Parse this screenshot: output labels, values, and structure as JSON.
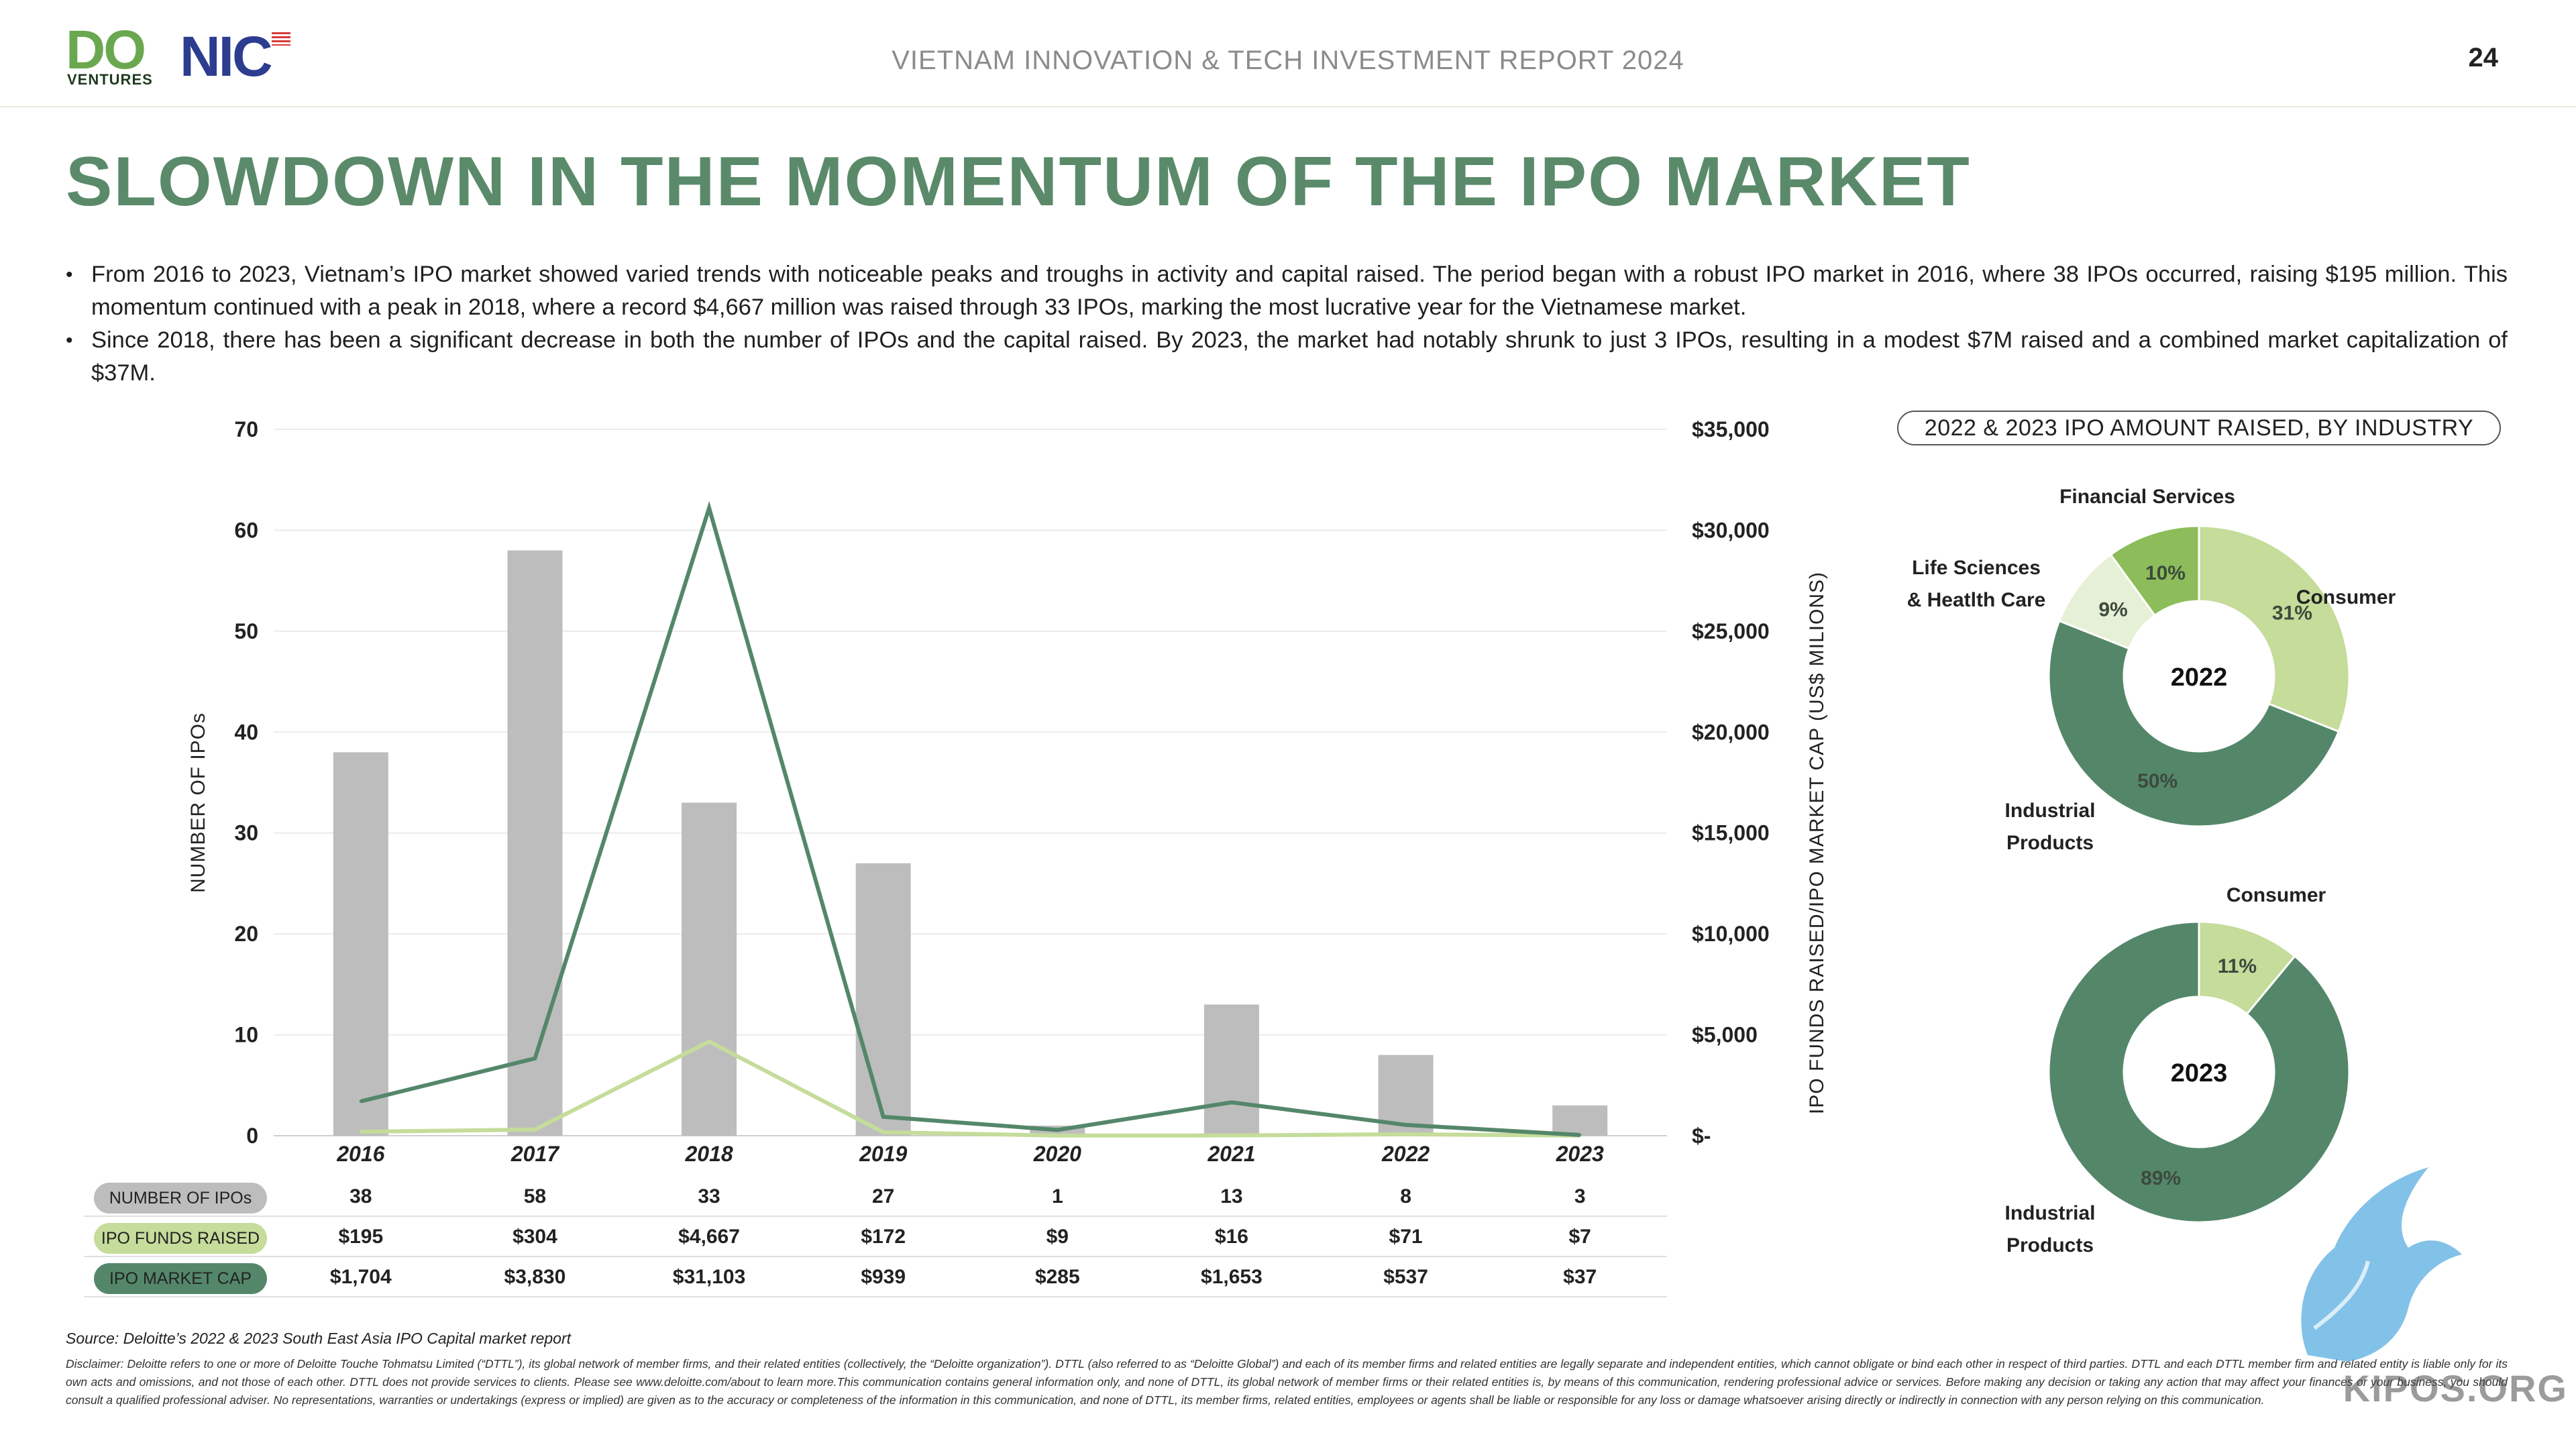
{
  "header": {
    "logo_do": "DO",
    "logo_ventures": "VENTURES",
    "logo_nic": "NIC",
    "report_title": "VIETNAM INNOVATION & TECH INVESTMENT REPORT 2024",
    "page_number": "24"
  },
  "title": "SLOWDOWN IN THE MOMENTUM OF THE IPO MARKET",
  "bullets": [
    "From 2016 to 2023, Vietnam’s IPO market showed varied trends with noticeable peaks and troughs in activity and capital raised. The period began with a robust IPO market in 2016, where 38 IPOs occurred, raising $195 million. This momentum continued with a peak in 2018, where a record $4,667 million was raised through 33 IPOs, marking the most lucrative year for the Vietnamese market.",
    "Since 2018, there has been a significant decrease in both the number of IPOs and the capital raised. By 2023, the market had notably shrunk to just 3 IPOs, resulting in a modest $7M raised and a combined market capitalization of $37M."
  ],
  "chart_data": [
    {
      "type": "bar",
      "categories": [
        "2016",
        "2017",
        "2018",
        "2019",
        "2020",
        "2021",
        "2022",
        "2023"
      ],
      "series": [
        {
          "name": "NUMBER OF IPOs",
          "type": "bar",
          "axis": "left",
          "values": [
            38,
            58,
            33,
            27,
            1,
            13,
            8,
            3
          ],
          "color": "#bdbdbd"
        },
        {
          "name": "IPO FUNDS RAISED",
          "type": "line",
          "axis": "right",
          "values": [
            195,
            304,
            4667,
            172,
            9,
            16,
            71,
            7
          ],
          "color": "#c5dc9a"
        },
        {
          "name": "IPO MARKET CAP",
          "type": "line",
          "axis": "right",
          "values": [
            1704,
            3830,
            31103,
            939,
            285,
            1653,
            537,
            37
          ],
          "color": "#54876a"
        }
      ],
      "ylabel": "NUMBER OF IPOs",
      "ylim": [
        0,
        70
      ],
      "yticks": [
        "0",
        "10",
        "20",
        "30",
        "40",
        "50",
        "60",
        "70"
      ],
      "y2label": "IPO FUNDS RAISED/IPO MARKET CAP (US$ MILIONS)",
      "y2lim": [
        0,
        35000
      ],
      "y2ticks": [
        "$-",
        "$5,000",
        "$10,000",
        "$15,000",
        "$20,000",
        "$25,000",
        "$30,000",
        "$35,000"
      ],
      "grid": true,
      "table": {
        "rows": [
          {
            "label": "NUMBER OF IPOs",
            "color": "#bdbdbd",
            "cells": [
              "38",
              "58",
              "33",
              "27",
              "1",
              "13",
              "8",
              "3"
            ]
          },
          {
            "label": "IPO FUNDS RAISED",
            "color": "#c5dc9a",
            "cells": [
              "$195",
              "$304",
              "$4,667",
              "$172",
              "$9",
              "$16",
              "$71",
              "$7"
            ]
          },
          {
            "label": "IPO MARKET CAP",
            "color": "#54876a",
            "cells": [
              "$1,704",
              "$3,830",
              "$31,103",
              "$939",
              "$285",
              "$1,653",
              "$537",
              "$37"
            ]
          }
        ]
      }
    },
    {
      "type": "pie",
      "title": "2022 & 2023 IPO AMOUNT RAISED, BY INDUSTRY",
      "center_label": "2022",
      "slices": [
        {
          "label": "Consumer",
          "pct": "31%",
          "value": 31,
          "color": "#c5dc9a"
        },
        {
          "label": "Industrial Products",
          "pct": "50%",
          "value": 50,
          "color": "#54876a"
        },
        {
          "label": "Life Sciences & Heatlth Care",
          "pct": "9%",
          "value": 9,
          "color": "#e6f0d6"
        },
        {
          "label": "Financial Services",
          "pct": "10%",
          "value": 10,
          "color": "#8cbd5a"
        }
      ]
    },
    {
      "type": "pie",
      "center_label": "2023",
      "slices": [
        {
          "label": "Consumer",
          "pct": "11%",
          "value": 11,
          "color": "#c5dc9a"
        },
        {
          "label": "Industrial Products",
          "pct": "89%",
          "value": 89,
          "color": "#54876a"
        }
      ]
    }
  ],
  "donut_labels": {
    "d2022": {
      "financial": "Financial Services",
      "life_line1": "Life Sciences",
      "life_line2": "& Heatlth Care",
      "consumer": "Consumer",
      "industrial_line1": "Industrial",
      "industrial_line2": "Products"
    },
    "d2023": {
      "consumer": "Consumer",
      "industrial_line1": "Industrial",
      "industrial_line2": "Products"
    }
  },
  "footer": {
    "source": "Source: Deloitte’s 2022 & 2023 South East Asia IPO Capital market report",
    "disclaimer": "Disclaimer: Deloitte refers to one or more of Deloitte Touche Tohmatsu Limited (“DTTL”), its global network of member firms, and their related entities (collectively, the “Deloitte organization”). DTTL (also referred to as “Deloitte Global”) and each of its member firms and related entities are legally separate and independent entities, which cannot obligate or bind each other in respect of third parties. DTTL and each DTTL member firm and related entity is liable only for its own acts and omissions, and not those of each other. DTTL does not provide services to clients. Please see www.deloitte.com/about to learn more.This communication contains general information only, and none of DTTL, its global network of member firms or their related entities is, by means of this communication, rendering professional advice or services. Before making any decision or taking any action that may affect your finances or your business, you should consult a qualified professional adviser. No representations, warranties or undertakings (express or implied) are given as to the accuracy or completeness of the information in this communication, and none of DTTL, its member firms, related entities, employees or agents shall be liable or responsible for any loss or damage whatsoever arising directly or indirectly in connection with any person relying on this communication."
  },
  "watermark": "KIPOS.ORG",
  "colors": {
    "title_green": "#5a8a6a",
    "bar_gray": "#bdbdbd",
    "light_green": "#c5dc9a",
    "dark_green": "#54876a",
    "accent_green": "#8cbd5a",
    "pale_green": "#e6f0d6"
  }
}
